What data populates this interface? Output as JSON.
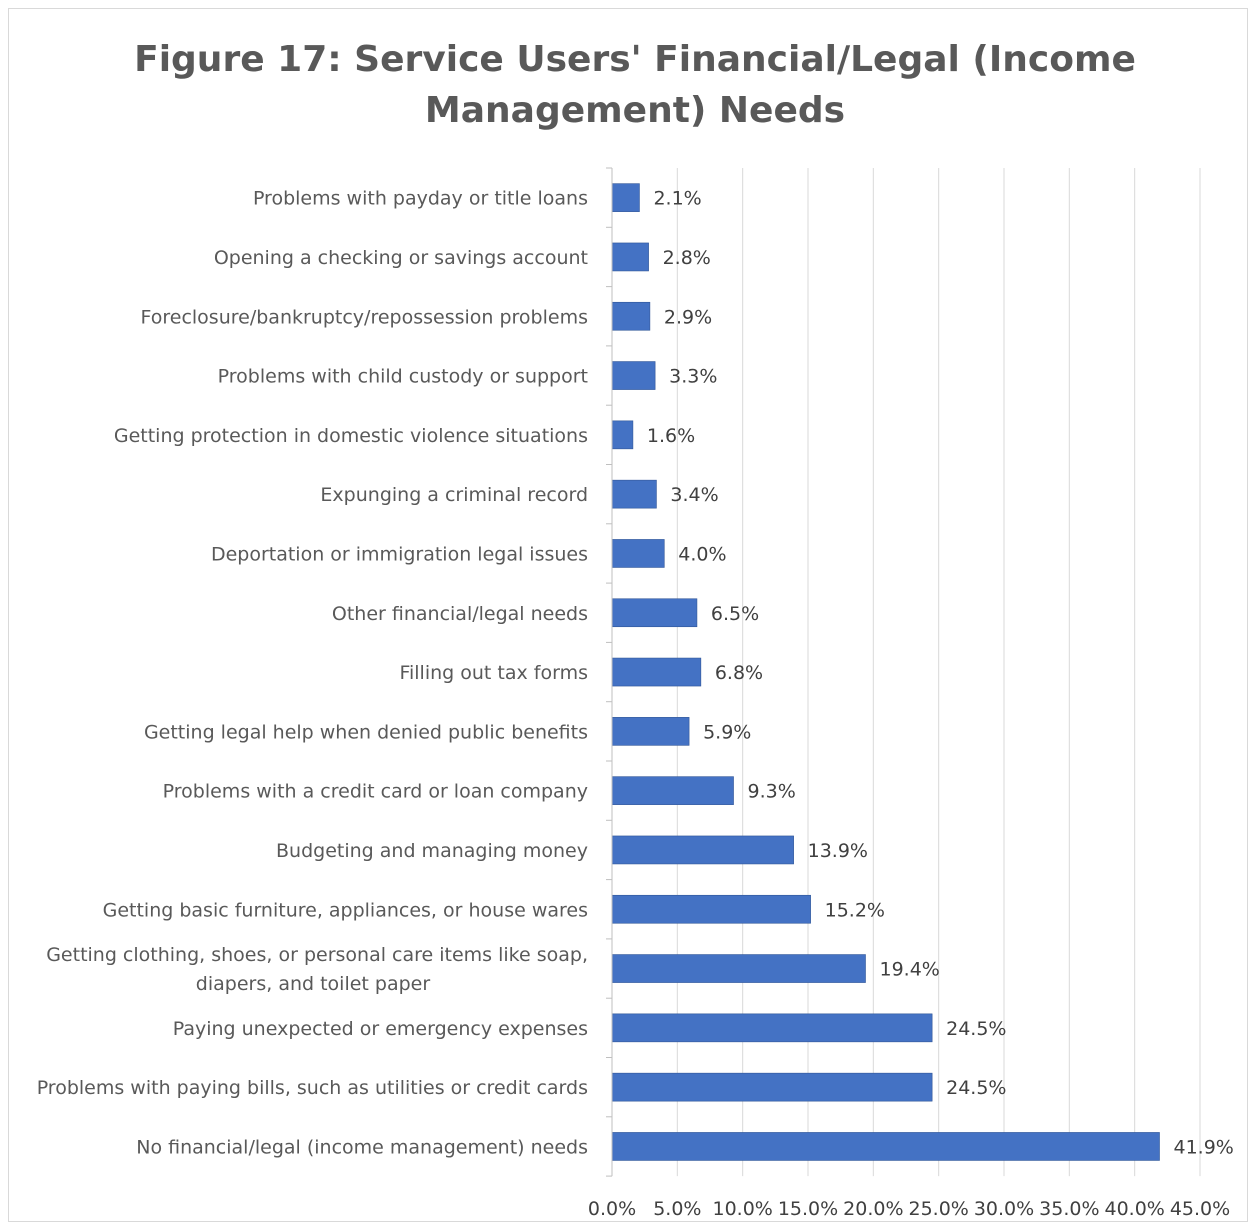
{
  "chart_data": {
    "type": "bar",
    "orientation": "horizontal",
    "title": "Figure 17: Service Users' Financial/Legal (Income Management) Needs",
    "title_lines": [
      "Figure 17: Service Users' Financial/Legal (Income",
      "Management) Needs"
    ],
    "categories": [
      "Problems with payday or title loans",
      "Opening a checking or savings account",
      "Foreclosure/bankruptcy/repossession problems",
      "Problems with child custody or support",
      "Getting protection in domestic violence situations",
      "Expunging a criminal record",
      "Deportation or immigration legal issues",
      "Other financial/legal needs",
      "Filling out tax forms",
      "Getting legal help when denied public benefits",
      "Problems with a credit card or loan company",
      "Budgeting and managing money",
      "Getting basic furniture, appliances, or house wares",
      "Getting clothing, shoes, or personal care items like soap, diapers, and toilet paper",
      "Paying unexpected or emergency expenses",
      "Problems with paying bills, such as utilities or credit cards",
      "No financial/legal (income management) needs"
    ],
    "category_lines": [
      [
        "Problems with payday or title loans"
      ],
      [
        "Opening a checking or savings account"
      ],
      [
        "Foreclosure/bankruptcy/repossession problems"
      ],
      [
        "Problems with child custody or support"
      ],
      [
        "Getting protection in domestic violence situations"
      ],
      [
        "Expunging a criminal record"
      ],
      [
        "Deportation or immigration legal issues"
      ],
      [
        "Other financial/legal needs"
      ],
      [
        "Filling out tax forms"
      ],
      [
        "Getting legal help when denied public benefits"
      ],
      [
        "Problems with a credit card or loan company"
      ],
      [
        "Budgeting and managing money"
      ],
      [
        "Getting basic furniture, appliances, or house wares"
      ],
      [
        "Getting clothing, shoes, or personal care items like soap,",
        "diapers, and toilet paper"
      ],
      [
        "Paying unexpected or emergency expenses"
      ],
      [
        "Problems with paying bills, such as utilities or credit cards"
      ],
      [
        "No financial/legal (income management) needs"
      ]
    ],
    "values": [
      2.1,
      2.8,
      2.9,
      3.3,
      1.6,
      3.4,
      4.0,
      6.5,
      6.8,
      5.9,
      9.3,
      13.9,
      15.2,
      19.4,
      24.5,
      24.5,
      41.9
    ],
    "value_labels": [
      "2.1%",
      "2.8%",
      "2.9%",
      "3.3%",
      "1.6%",
      "3.4%",
      "4.0%",
      "6.5%",
      "6.8%",
      "5.9%",
      "9.3%",
      "13.9%",
      "15.2%",
      "19.4%",
      "24.5%",
      "24.5%",
      "41.9%"
    ],
    "xlim": [
      0,
      45
    ],
    "xticks": [
      0,
      5,
      10,
      15,
      20,
      25,
      30,
      35,
      40,
      45
    ],
    "xtick_labels": [
      "0.0%",
      "5.0%",
      "10.0%",
      "15.0%",
      "20.0%",
      "25.0%",
      "30.0%",
      "35.0%",
      "40.0%",
      "45.0%"
    ],
    "xlabel": "",
    "ylabel": "",
    "grid": "vertical",
    "legend": "none",
    "colors": {
      "bar": "#4472c4",
      "bar_border": "#2f5597",
      "grid": "#d9d9d9",
      "axis": "#bfbfbf",
      "title": "#595959",
      "text": "#595959"
    }
  }
}
